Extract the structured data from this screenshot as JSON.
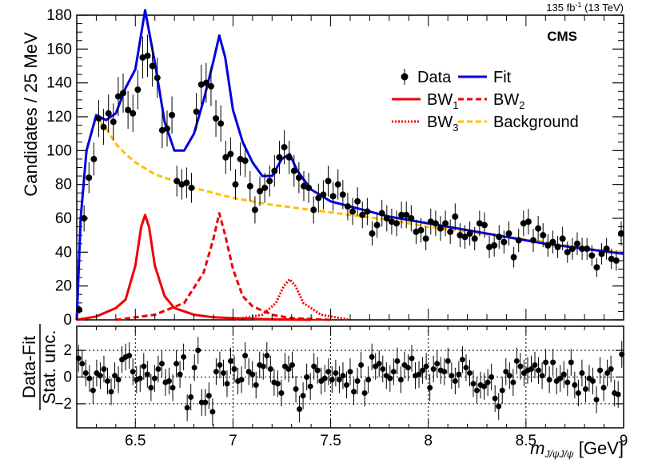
{
  "chart_data": {
    "type": "scatter",
    "experiment": "CMS",
    "luminosity": {
      "value": "135 fb",
      "exponent": "-1",
      "energy": "(13 TeV)"
    },
    "x_axis": {
      "label_main": "m",
      "label_sub": "J/ψJ/ψ",
      "label_unit": "[GeV]",
      "range": [
        6.2,
        9.0
      ],
      "ticks": [
        6.5,
        7,
        7.5,
        8,
        8.5,
        9
      ],
      "tick_labels": [
        "6.5",
        "7",
        "7.5",
        "8",
        "8.5",
        "9"
      ]
    },
    "top_panel": {
      "ylabel": "Candidates / 25 MeV",
      "ylim": [
        0,
        180
      ],
      "yticks": [
        0,
        20,
        40,
        60,
        80,
        100,
        120,
        140,
        160,
        180
      ],
      "ytick_labels": [
        "0",
        "20",
        "40",
        "60",
        "80",
        "100",
        "120",
        "140",
        "160",
        "180"
      ],
      "data": {
        "x": [
          6.2125,
          6.2375,
          6.2625,
          6.2875,
          6.3125,
          6.3375,
          6.3625,
          6.3875,
          6.4125,
          6.4375,
          6.4625,
          6.4875,
          6.5125,
          6.5375,
          6.5625,
          6.5875,
          6.6125,
          6.6375,
          6.6625,
          6.6875,
          6.7125,
          6.7375,
          6.7625,
          6.7875,
          6.8125,
          6.8375,
          6.8625,
          6.8875,
          6.9125,
          6.9375,
          6.9625,
          6.9875,
          7.0125,
          7.0375,
          7.0625,
          7.0875,
          7.1125,
          7.1375,
          7.1625,
          7.1875,
          7.2125,
          7.2375,
          7.2625,
          7.2875,
          7.3125,
          7.3375,
          7.3625,
          7.3875,
          7.4125,
          7.4375,
          7.4625,
          7.4875,
          7.5125,
          7.5375,
          7.5625,
          7.5875,
          7.6125,
          7.6375,
          7.6625,
          7.6875,
          7.7125,
          7.7375,
          7.7625,
          7.7875,
          7.8125,
          7.8375,
          7.8625,
          7.8875,
          7.9125,
          7.9375,
          7.9625,
          7.9875,
          8.0125,
          8.0375,
          8.0625,
          8.0875,
          8.1125,
          8.1375,
          8.1625,
          8.1875,
          8.2125,
          8.2375,
          8.2625,
          8.2875,
          8.3125,
          8.3375,
          8.3625,
          8.3875,
          8.4125,
          8.4375,
          8.4625,
          8.4875,
          8.5125,
          8.5375,
          8.5625,
          8.5875,
          8.6125,
          8.6375,
          8.6625,
          8.6875,
          8.7125,
          8.7375,
          8.7625,
          8.7875,
          8.8125,
          8.8375,
          8.8625,
          8.8875,
          8.9125,
          8.9375,
          8.9625,
          8.9875
        ],
        "y": [
          6,
          60,
          84,
          95,
          119,
          114,
          122,
          117,
          132,
          134,
          124,
          122,
          136,
          155,
          156,
          150,
          143,
          112,
          113,
          121,
          82,
          80,
          81,
          78,
          123,
          139,
          140,
          138,
          119,
          116,
          96,
          98,
          80,
          95,
          94,
          79,
          65,
          76,
          78,
          82,
          88,
          96,
          102,
          96,
          88,
          84,
          79,
          78,
          65,
          72,
          74,
          82,
          73,
          80,
          74,
          67,
          64,
          70,
          62,
          64,
          51,
          56,
          63,
          60,
          58,
          57,
          62,
          62,
          60,
          52,
          53,
          48,
          58,
          57,
          54,
          57,
          52,
          61,
          50,
          49,
          51,
          48,
          57,
          56,
          43,
          44,
          49,
          46,
          51,
          37,
          47,
          57,
          58,
          47,
          54,
          50,
          44,
          46,
          43,
          48,
          40,
          42,
          45,
          42,
          42,
          38,
          31,
          39,
          42,
          36,
          35,
          51
        ],
        "yerr_note": "Poisson, sqrt(N)"
      },
      "curves": [
        {
          "name": "Fit",
          "color": "#0000e0",
          "style": "solid",
          "x": [
            6.2,
            6.22,
            6.25,
            6.3,
            6.35,
            6.4,
            6.45,
            6.5,
            6.55,
            6.6,
            6.65,
            6.7,
            6.75,
            6.8,
            6.85,
            6.9,
            6.93,
            6.96,
            7.0,
            7.05,
            7.1,
            7.15,
            7.2,
            7.25,
            7.29,
            7.33,
            7.4,
            7.5,
            7.6,
            7.8,
            8.0,
            8.2,
            8.4,
            8.6,
            8.8,
            9.0
          ],
          "y": [
            0,
            60,
            100,
            121,
            118,
            122,
            137,
            148,
            183,
            152,
            117,
            100,
            100,
            110,
            130,
            153,
            168,
            155,
            124,
            105,
            93,
            85,
            85,
            95,
            98,
            88,
            77,
            70,
            67,
            61,
            57,
            53,
            49,
            45,
            42,
            39
          ]
        },
        {
          "name": "BW1",
          "color": "#ee0000",
          "style": "solid",
          "x": [
            6.2,
            6.3,
            6.4,
            6.45,
            6.5,
            6.53,
            6.55,
            6.57,
            6.6,
            6.65,
            6.7,
            6.8,
            6.9,
            7.0,
            7.2,
            7.4
          ],
          "y": [
            0,
            2,
            7,
            12,
            32,
            55,
            62,
            55,
            32,
            14,
            7,
            3,
            1.5,
            1,
            0.3,
            0
          ]
        },
        {
          "name": "BW2",
          "color": "#ee0000",
          "style": "dashed",
          "x": [
            6.4,
            6.6,
            6.75,
            6.85,
            6.9,
            6.93,
            6.96,
            7.0,
            7.05,
            7.1,
            7.2,
            7.3,
            7.5
          ],
          "y": [
            0,
            3,
            10,
            28,
            48,
            63,
            50,
            30,
            14,
            8,
            3,
            1,
            0
          ]
        },
        {
          "name": "BW3",
          "color": "#ee0000",
          "style": "dotted",
          "x": [
            7.0,
            7.15,
            7.22,
            7.26,
            7.29,
            7.32,
            7.36,
            7.45,
            7.6
          ],
          "y": [
            0,
            3,
            10,
            20,
            24,
            20,
            10,
            3,
            0
          ]
        },
        {
          "name": "Background",
          "color": "#ffc000",
          "style": "dashed",
          "x": [
            6.2,
            6.22,
            6.25,
            6.3,
            6.35,
            6.4,
            6.45,
            6.5,
            6.6,
            6.7,
            6.8,
            7.0,
            7.2,
            7.4,
            7.6,
            7.8,
            8.0,
            8.2,
            8.4,
            8.6,
            8.8,
            9.0
          ],
          "y": [
            0,
            60,
            100,
            120,
            113,
            104,
            98,
            93,
            86,
            82,
            78,
            72,
            68,
            65,
            62,
            59,
            55,
            52,
            49,
            46,
            42,
            40
          ]
        }
      ]
    },
    "bottom_panel": {
      "ylabel_top": "Data-Fit",
      "ylabel_bottom": "Stat. unc.",
      "ylim": [
        -3.8,
        3.8
      ],
      "yticks": [
        -2,
        0,
        2
      ],
      "ytick_labels": [
        "−2",
        "0",
        "2"
      ],
      "pulls": [
        1.4,
        1.0,
        0.3,
        -0.1,
        -1.0,
        0.3,
        0.1,
        0.6,
        -0.3,
        -1.1,
        0.1,
        -0.2,
        1.3,
        1.5,
        1.6,
        0.4,
        -0.2,
        -0.1,
        0.8,
        0.2,
        -0.8,
        -0.1,
        0.6,
        1.0,
        -0.4,
        -0.3,
        -0.8,
        1.0,
        0.2,
        1.5,
        -2.3,
        -1.5,
        0.7,
        2.0,
        -1.9,
        -1.9,
        -1.4,
        -2.6,
        0.4,
        0.9,
        0.3,
        -0.5,
        1.2,
        0.6,
        -0.3,
        -0.2,
        1.6,
        0.4,
        0.2,
        -0.6,
        0.9,
        0.8,
        1.6,
        0.6,
        -0.4,
        -0.5,
        -1.2,
        0.8,
        0.6,
        0.9,
        -0.9,
        -2.4,
        -1.4,
        0.0,
        -0.7,
        0.8,
        0.5,
        -0.3,
        -0.1,
        0.4,
        -0.2,
        0.3,
        -0.2,
        0.1,
        -0.6,
        0.4,
        -1.1,
        -0.3,
        0.9,
        -1.2,
        -0.2,
        1.5,
        0.8,
        1.0,
        0.6,
        0.1,
        -0.1,
        0.4,
        1.2,
        -0.2,
        0.9,
        0.7,
        1.4,
        0.1,
        0.2,
        0.5,
        0.8,
        -0.8,
        0.6,
        1.0,
        0.5,
        0.4,
        1.2,
        0.1,
        -0.3,
        0.2,
        1.3,
        0.7,
        0.3,
        -0.5,
        -1.0,
        -0.6,
        -0.7,
        -0.4,
        0.0,
        -1.6,
        -2.2,
        -1.0,
        0.4,
        0.1,
        -0.4,
        1.2,
        0.8,
        0.3,
        0.5,
        0.6,
        0.9,
        0.5,
        0.1,
        1.1,
        -0.2,
        1.1,
        -0.3,
        -0.1,
        0.2,
        -0.4,
        1.1,
        -0.6,
        -1.2,
        0.3,
        -0.9,
        -0.1,
        -0.3,
        -1.7,
        0.5,
        -0.8,
        0.3,
        0.6,
        -1.2,
        -1.3,
        1.7
      ]
    },
    "legend": {
      "placement": "top-right",
      "items": [
        {
          "label": "Data",
          "kind": "point",
          "color": "#000000"
        },
        {
          "label": "Fit",
          "kind": "line",
          "color": "#0000e0",
          "style": "solid"
        },
        {
          "label": "BW",
          "sub": "1",
          "kind": "line",
          "color": "#ee0000",
          "style": "solid"
        },
        {
          "label": "BW",
          "sub": "2",
          "kind": "line",
          "color": "#ee0000",
          "style": "dashed"
        },
        {
          "label": "BW",
          "sub": "3",
          "kind": "line",
          "color": "#ee0000",
          "style": "dotted"
        },
        {
          "label": "Background",
          "kind": "line",
          "color": "#ffc000",
          "style": "dashed"
        }
      ]
    },
    "grid_bottom_panel": true,
    "grid_top_panel": false
  }
}
